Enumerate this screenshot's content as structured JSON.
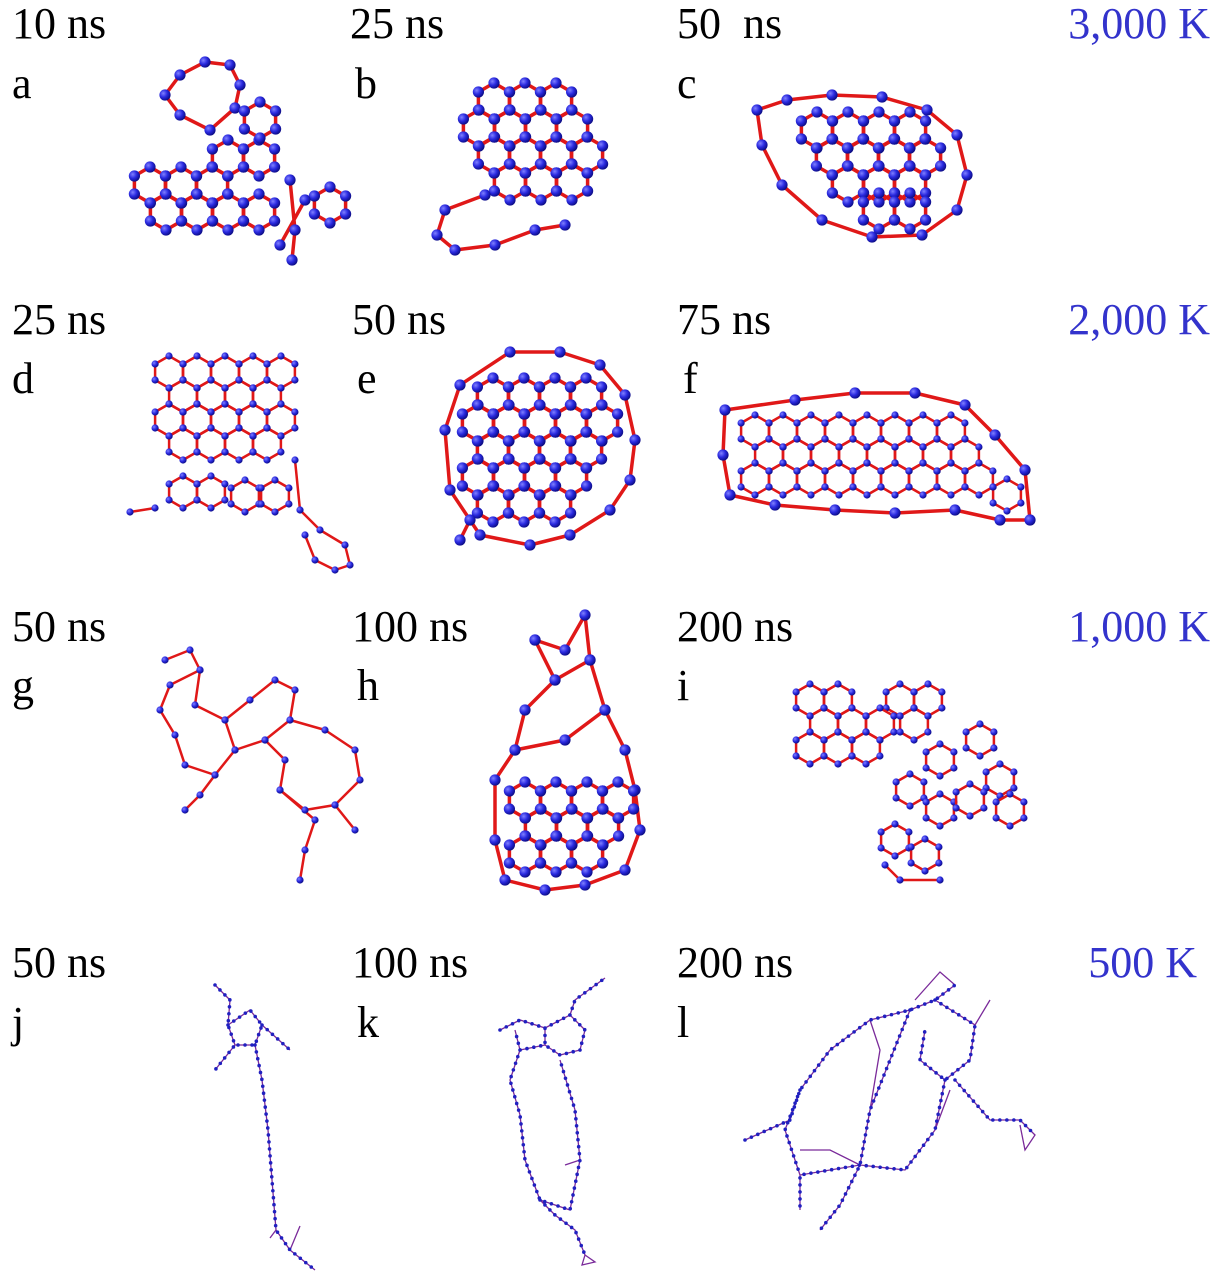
{
  "rows": [
    {
      "temperature": "3,000 K",
      "panels": [
        {
          "time": "10 ns",
          "letter": "a"
        },
        {
          "time": "25 ns",
          "letter": "b"
        },
        {
          "time": "50  ns",
          "letter": "c"
        }
      ]
    },
    {
      "temperature": "2,000 K",
      "panels": [
        {
          "time": "25 ns",
          "letter": "d"
        },
        {
          "time": "50 ns",
          "letter": "e"
        },
        {
          "time": "75 ns",
          "letter": "f"
        }
      ]
    },
    {
      "temperature": "1,000 K",
      "panels": [
        {
          "time": "50 ns",
          "letter": "g"
        },
        {
          "time": "100 ns",
          "letter": "h"
        },
        {
          "time": "200 ns",
          "letter": "i"
        }
      ]
    },
    {
      "temperature": "500 K",
      "panels": [
        {
          "time": "50 ns",
          "letter": "j"
        },
        {
          "time": "100 ns",
          "letter": "k"
        },
        {
          "time": "200 ns",
          "letter": "l"
        }
      ]
    }
  ]
}
